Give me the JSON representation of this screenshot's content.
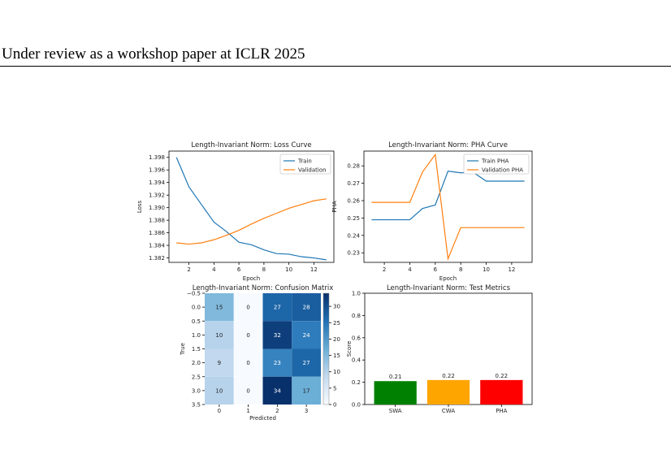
{
  "header": {
    "text": "Under review as a workshop paper at ICLR 2025"
  },
  "colors": {
    "train": "#1f77b4",
    "validation": "#ff7f0e"
  },
  "chart_data": [
    {
      "type": "line",
      "title": "Length-Invariant Norm: Loss Curve",
      "xlabel": "Epoch",
      "ylabel": "Loss",
      "x": [
        1,
        2,
        3,
        4,
        5,
        6,
        7,
        8,
        9,
        10,
        11,
        12,
        13
      ],
      "xticks": [
        "2",
        "4",
        "6",
        "8",
        "10",
        "12"
      ],
      "yticks": [
        "1.382",
        "1.384",
        "1.386",
        "1.388",
        "1.390",
        "1.392",
        "1.394",
        "1.396",
        "1.398"
      ],
      "ylim": [
        1.3813,
        1.399
      ],
      "legend_position": "top-right",
      "series": [
        {
          "name": "Train",
          "values": [
            1.398,
            1.3933,
            1.3905,
            1.3877,
            1.3862,
            1.3845,
            1.3841,
            1.3833,
            1.3827,
            1.3826,
            1.3822,
            1.382,
            1.3817
          ]
        },
        {
          "name": "Validation",
          "values": [
            1.3844,
            1.3842,
            1.3844,
            1.3849,
            1.3856,
            1.3864,
            1.3874,
            1.3883,
            1.3891,
            1.3899,
            1.3905,
            1.3911,
            1.3914
          ]
        }
      ]
    },
    {
      "type": "line",
      "title": "Length-Invariant Norm: PHA Curve",
      "xlabel": "Epoch",
      "ylabel": "PHA",
      "x": [
        1,
        2,
        3,
        4,
        5,
        6,
        7,
        8,
        9,
        10,
        11,
        12,
        13
      ],
      "xticks": [
        "2",
        "4",
        "6",
        "8",
        "10",
        "12"
      ],
      "yticks": [
        "0.23",
        "0.24",
        "0.25",
        "0.26",
        "0.27",
        "0.28"
      ],
      "ylim": [
        0.2245,
        0.2885
      ],
      "legend_position": "top-right",
      "series": [
        {
          "name": "Train PHA",
          "values": [
            0.249,
            0.249,
            0.249,
            0.249,
            0.2555,
            0.2575,
            0.277,
            0.276,
            0.2762,
            0.2712,
            0.2712,
            0.2712,
            0.2712
          ]
        },
        {
          "name": "Validation PHA",
          "values": [
            0.259,
            0.259,
            0.259,
            0.259,
            0.2765,
            0.2865,
            0.2265,
            0.2445,
            0.2445,
            0.2445,
            0.2445,
            0.2445,
            0.2445
          ]
        }
      ]
    },
    {
      "type": "heatmap",
      "title": "Length-Invariant Norm: Confusion Matrix",
      "xlabel": "Predicted",
      "ylabel": "True",
      "xticks": [
        "0",
        "1",
        "2",
        "3"
      ],
      "yticks": [
        "−0.5",
        "0.0",
        "0.5",
        "1.0",
        "1.5",
        "2.0",
        "2.5",
        "3.0",
        "3.5"
      ],
      "values": [
        [
          15,
          0,
          27,
          28
        ],
        [
          10,
          0,
          32,
          24
        ],
        [
          9,
          0,
          23,
          27
        ],
        [
          10,
          0,
          34,
          17
        ]
      ],
      "vmin": 0,
      "vmax": 34,
      "colorbar_ticks": [
        "0",
        "5",
        "10",
        "15",
        "20",
        "25",
        "30"
      ]
    },
    {
      "type": "bar",
      "title": "Length-Invariant Norm: Test Metrics",
      "ylabel": "Score",
      "categories": [
        "SWA",
        "CWA",
        "PHA"
      ],
      "values": [
        0.21,
        0.22,
        0.22
      ],
      "labels": [
        "0.21",
        "0.22",
        "0.22"
      ],
      "colors": [
        "#008000",
        "#ffa500",
        "#ff0000"
      ],
      "yticks": [
        "0.0",
        "0.2",
        "0.4",
        "0.6",
        "0.8",
        "1.0"
      ],
      "ylim": [
        0,
        1.0
      ]
    }
  ]
}
